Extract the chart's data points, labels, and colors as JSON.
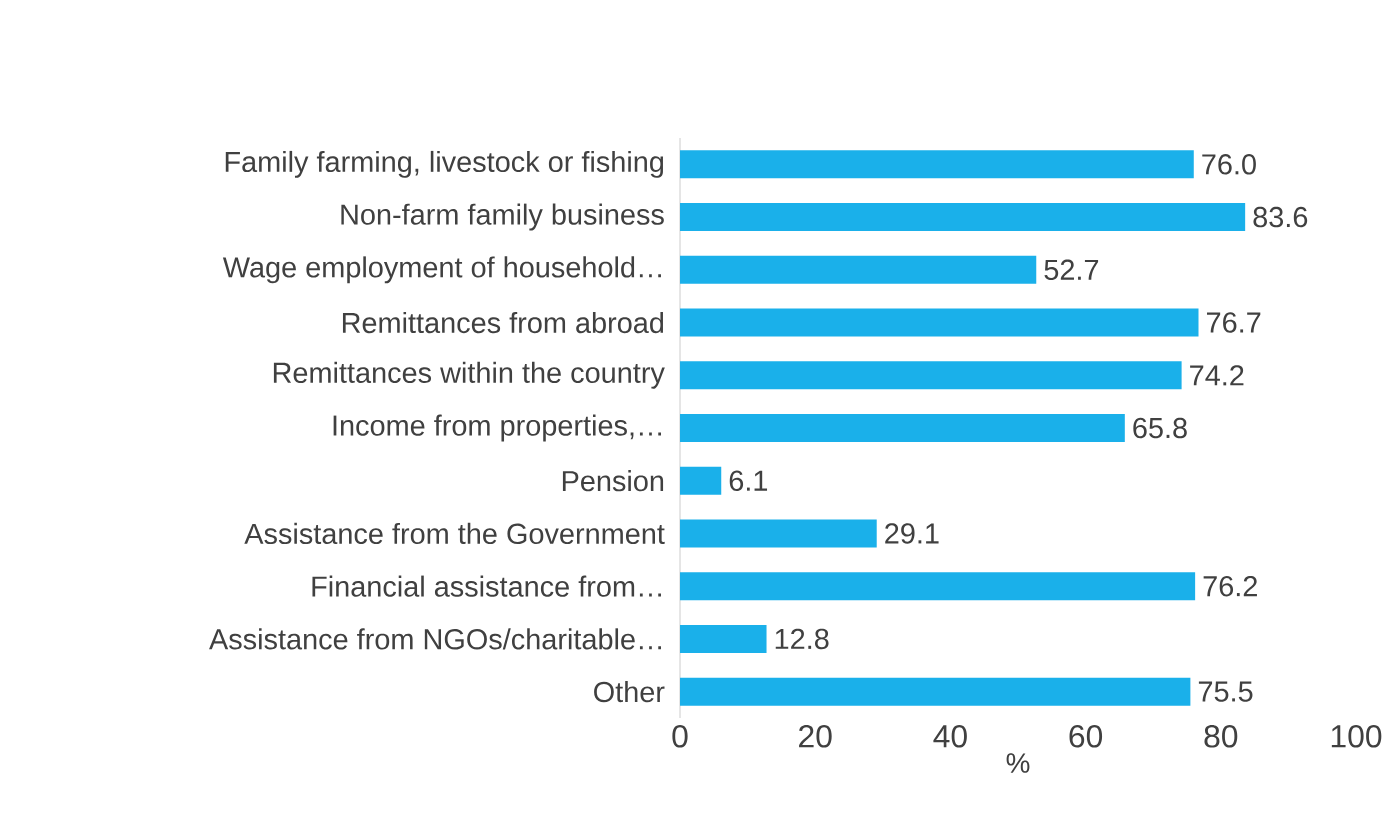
{
  "chart_data": {
    "type": "bar",
    "orientation": "horizontal",
    "xlabel": "%",
    "categories": [
      "Family farming, livestock or fishing",
      "Non-farm family business",
      "Wage employment of household…",
      "Remittances from abroad",
      "Remittances within the country",
      "Income from properties,…",
      "Pension",
      "Assistance from the Government",
      "Financial assistance from…",
      "Assistance from NGOs/charitable…",
      "Other"
    ],
    "values": [
      76.0,
      83.6,
      52.7,
      76.7,
      74.2,
      65.8,
      6.1,
      29.1,
      76.2,
      12.8,
      75.5
    ],
    "value_labels": [
      "76.0",
      "83.6",
      "52.7",
      "76.7",
      "74.2",
      "65.8",
      "6.1",
      "29.1",
      "76.2",
      "12.8",
      "75.5"
    ],
    "color": "#1ab0ea",
    "xlim": [
      0,
      100
    ],
    "xticks": [
      0,
      20,
      40,
      60,
      80,
      100
    ]
  }
}
